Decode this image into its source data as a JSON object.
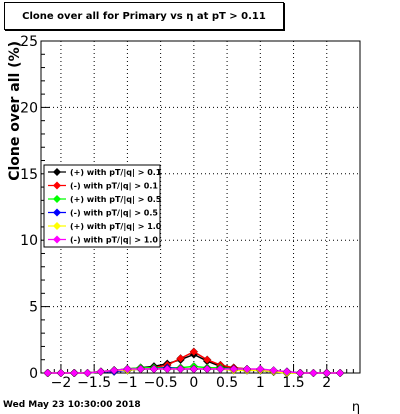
{
  "chart_data": {
    "type": "line",
    "title": "Clone  over all for Primary vs   η at pT > 0.11",
    "xlabel": "η",
    "ylabel": "Clone  over all (%)",
    "xlim": [
      -2.3,
      2.5
    ],
    "ylim": [
      0,
      25
    ],
    "x_ticks": [
      "−2",
      "−1.5",
      "−1",
      "−0.5",
      "0",
      "0.5",
      "1",
      "1.5",
      "2"
    ],
    "y_ticks": [
      "0",
      "5",
      "10",
      "15",
      "20",
      "25"
    ],
    "grid": true,
    "legend_position": "left-middle",
    "x": [
      -2.2,
      -2.0,
      -1.8,
      -1.6,
      -1.4,
      -1.2,
      -1.0,
      -0.8,
      -0.6,
      -0.4,
      -0.2,
      0.0,
      0.2,
      0.4,
      0.6,
      0.8,
      1.0,
      1.2,
      1.4,
      1.6,
      1.8,
      2.0,
      2.2
    ],
    "series": [
      {
        "name": "(+) with pT/|q| > 0.1",
        "color": "#000000",
        "values": [
          0.0,
          0.0,
          0.0,
          0.0,
          0.1,
          0.2,
          0.3,
          0.4,
          0.5,
          0.7,
          1.0,
          1.4,
          0.9,
          0.5,
          0.4,
          0.3,
          0.2,
          0.1,
          0.1,
          0.0,
          0.0,
          0.0,
          0.0
        ]
      },
      {
        "name": "(-) with pT/|q| > 0.1",
        "color": "#ff0000",
        "values": [
          0.0,
          0.0,
          0.0,
          0.0,
          0.1,
          0.2,
          0.3,
          0.3,
          0.4,
          0.6,
          1.1,
          1.6,
          1.0,
          0.6,
          0.4,
          0.3,
          0.2,
          0.1,
          0.0,
          0.0,
          0.0,
          0.0,
          0.0
        ]
      },
      {
        "name": "(+) with pT/|q| > 0.5",
        "color": "#00ff00",
        "values": [
          0.0,
          0.0,
          0.0,
          0.0,
          0.1,
          0.2,
          0.3,
          0.4,
          0.4,
          0.4,
          0.4,
          0.5,
          0.4,
          0.4,
          0.3,
          0.3,
          0.2,
          0.1,
          0.0,
          0.0,
          0.0,
          0.0,
          0.0
        ]
      },
      {
        "name": "(-) with pT/|q| > 0.5",
        "color": "#0000ff",
        "values": [
          0.0,
          0.0,
          0.0,
          0.0,
          0.1,
          0.1,
          0.2,
          0.3,
          0.3,
          0.4,
          0.3,
          0.3,
          0.3,
          0.3,
          0.3,
          0.2,
          0.2,
          0.1,
          0.1,
          0.0,
          0.0,
          0.0,
          0.0
        ]
      },
      {
        "name": "(+) with pT/|q| > 1.0",
        "color": "#ffff00",
        "values": [
          0.0,
          0.0,
          0.0,
          0.0,
          0.1,
          0.2,
          0.2,
          0.3,
          0.3,
          0.3,
          0.3,
          0.3,
          0.3,
          0.3,
          0.2,
          0.2,
          0.2,
          0.1,
          0.0,
          0.0,
          0.0,
          0.0,
          0.0
        ]
      },
      {
        "name": "(-) with pT/|q| > 1.0",
        "color": "#ff00ff",
        "values": [
          0.0,
          0.0,
          0.0,
          0.0,
          0.1,
          0.2,
          0.3,
          0.3,
          0.3,
          0.3,
          0.3,
          0.3,
          0.3,
          0.3,
          0.3,
          0.3,
          0.3,
          0.2,
          0.1,
          0.0,
          0.0,
          0.0,
          0.0
        ]
      }
    ]
  },
  "footer": {
    "timestamp": "Wed May 23 10:30:00 2018"
  }
}
